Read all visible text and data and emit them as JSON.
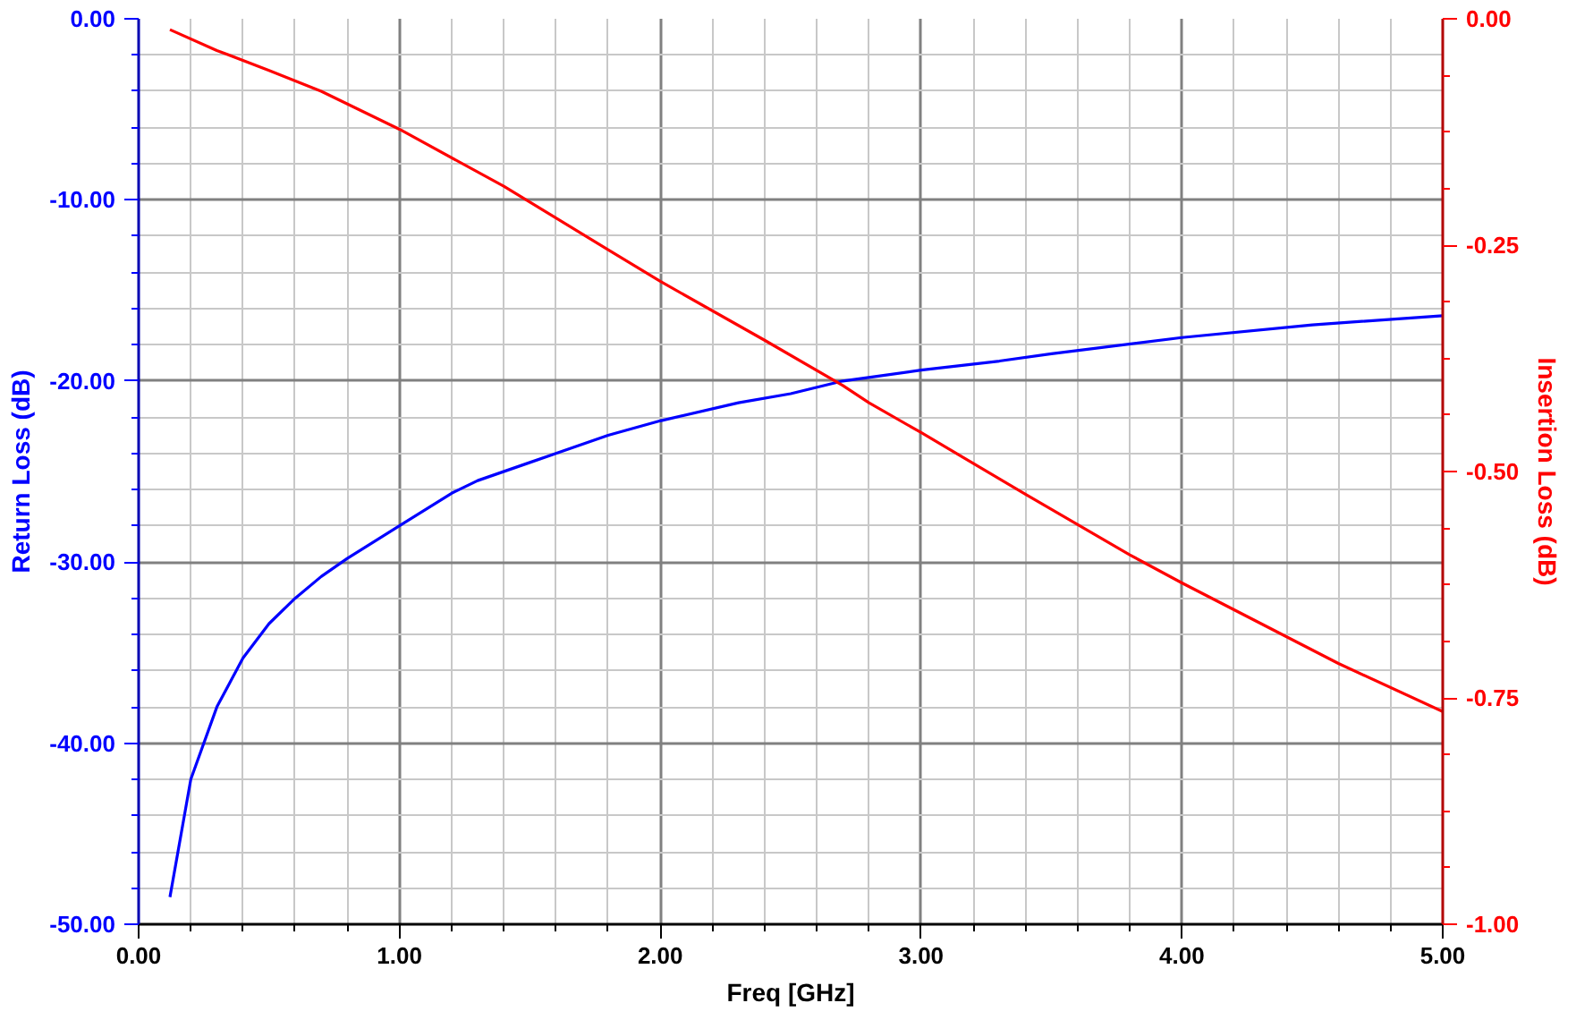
{
  "chart_data": {
    "type": "line",
    "xlabel": "Freq [GHz]",
    "ylabel": "Return Loss (dB)",
    "y2label": "Insertion Loss (dB)",
    "xlim": [
      0,
      5
    ],
    "xticks": [
      {
        "value": 0,
        "label": "0.00"
      },
      {
        "value": 1,
        "label": "1.00"
      },
      {
        "value": 2,
        "label": "2.00"
      },
      {
        "value": 3,
        "label": "3.00"
      },
      {
        "value": 4,
        "label": "4.00"
      },
      {
        "value": 5,
        "label": "5.00"
      }
    ],
    "ylim": [
      -50,
      0
    ],
    "yticks": [
      {
        "value": -50,
        "label": "-50.00"
      },
      {
        "value": -40,
        "label": "-40.00"
      },
      {
        "value": -30,
        "label": "-30.00"
      },
      {
        "value": -20,
        "label": "-20.00"
      },
      {
        "value": -10,
        "label": "-10.00"
      },
      {
        "value": 0,
        "label": "0.00"
      }
    ],
    "y2lim": [
      -1,
      0
    ],
    "y2ticks": [
      {
        "value": -1,
        "label": "-1.00"
      },
      {
        "value": -0.75,
        "label": "-0.75"
      },
      {
        "value": -0.5,
        "label": "-0.50"
      },
      {
        "value": -0.25,
        "label": "-0.25"
      },
      {
        "value": 0,
        "label": "0.00"
      }
    ],
    "grid": true,
    "line_style": "solid",
    "series": [
      {
        "color": "#0000ff",
        "x": [
          0.12,
          0.2,
          0.3,
          0.4,
          0.5,
          0.6,
          0.7,
          0.8,
          1.0,
          1.2,
          1.3,
          1.5,
          1.8,
          2.0,
          2.3,
          2.5,
          2.7,
          3.0,
          3.3,
          3.5,
          4.0,
          4.5,
          5.0
        ],
        "values": [
          -48.5,
          -42.0,
          -38.0,
          -35.3,
          -33.4,
          -32.0,
          -30.8,
          -29.8,
          -28.0,
          -26.2,
          -25.5,
          -24.5,
          -23.0,
          -22.2,
          -21.2,
          -20.7,
          -20.0,
          -19.4,
          -18.9,
          -18.5,
          -17.6,
          -16.9,
          -16.4
        ]
      },
      {
        "color": "#ff0000",
        "axis": "y2",
        "x": [
          0.12,
          0.3,
          0.5,
          0.7,
          1.0,
          1.4,
          1.8,
          2.0,
          2.4,
          2.7,
          2.8,
          3.0,
          3.4,
          3.8,
          4.0,
          4.6,
          5.0
        ],
        "values": [
          -0.012,
          -0.035,
          -0.057,
          -0.08,
          -0.122,
          -0.185,
          -0.255,
          -0.29,
          -0.355,
          -0.405,
          -0.424,
          -0.457,
          -0.525,
          -0.592,
          -0.623,
          -0.712,
          -0.765
        ]
      }
    ]
  }
}
